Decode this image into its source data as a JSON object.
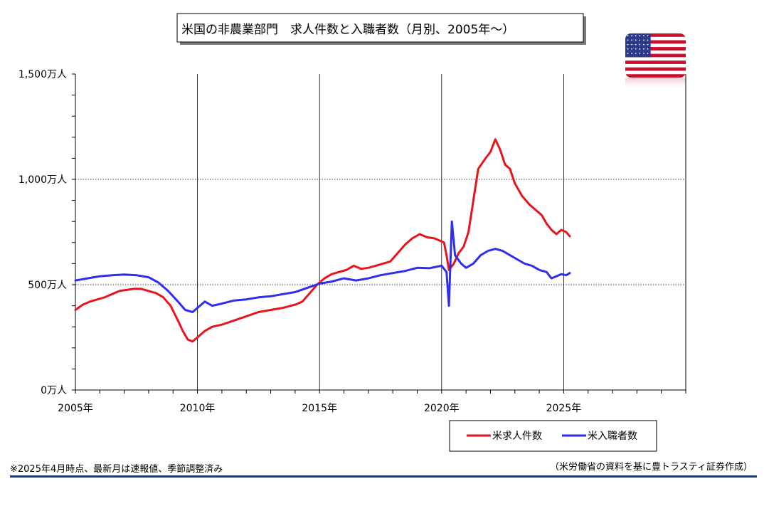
{
  "colors": {
    "hires": "#e8141c",
    "openings": "#2e2ef0",
    "grid": "#000000",
    "footer_rule": "#1f3a6e",
    "flag_red": "#c8102e",
    "flag_blue": "#2b3a8c"
  },
  "flag_icon": "us-flag-icon",
  "footnote_left": "※2025年4月時点、最新月は速報値、季節調整済み",
  "footnote_right": "（米労働省の資料を基に豊トラスティ証券作成）",
  "chart_data": {
    "type": "line",
    "title": "米国の非農業部門　求人件数と入職者数（月別、2005年～）",
    "xlabel": "",
    "ylabel": "",
    "x_unit": "year",
    "xlim": [
      2005,
      2030
    ],
    "ylim": [
      0,
      1500
    ],
    "y_ticks": [
      0,
      500,
      1000,
      1500
    ],
    "y_tick_labels": [
      "0万人",
      "500万人",
      "1,000万人",
      "1,500万人"
    ],
    "x_ticks": [
      2005,
      2010,
      2015,
      2020,
      2025
    ],
    "x_tick_labels": [
      "2005年",
      "2010年",
      "2015年",
      "2020年",
      "2025年"
    ],
    "grid": {
      "x": true,
      "y": true
    },
    "legend_position": "bottom-right",
    "series": [
      {
        "name": "米求人件数",
        "color_key": "hires",
        "points": [
          [
            2005.0,
            380
          ],
          [
            2005.3,
            405
          ],
          [
            2005.6,
            420
          ],
          [
            2005.9,
            430
          ],
          [
            2006.2,
            440
          ],
          [
            2006.5,
            455
          ],
          [
            2006.8,
            470
          ],
          [
            2007.1,
            475
          ],
          [
            2007.4,
            480
          ],
          [
            2007.7,
            480
          ],
          [
            2008.0,
            470
          ],
          [
            2008.3,
            460
          ],
          [
            2008.6,
            440
          ],
          [
            2008.9,
            400
          ],
          [
            2009.2,
            330
          ],
          [
            2009.4,
            280
          ],
          [
            2009.6,
            240
          ],
          [
            2009.8,
            230
          ],
          [
            2010.0,
            250
          ],
          [
            2010.3,
            280
          ],
          [
            2010.6,
            300
          ],
          [
            2011.0,
            310
          ],
          [
            2011.5,
            330
          ],
          [
            2012.0,
            350
          ],
          [
            2012.5,
            370
          ],
          [
            2013.0,
            380
          ],
          [
            2013.5,
            390
          ],
          [
            2014.0,
            405
          ],
          [
            2014.3,
            420
          ],
          [
            2014.6,
            460
          ],
          [
            2014.9,
            500
          ],
          [
            2015.2,
            530
          ],
          [
            2015.5,
            550
          ],
          [
            2015.8,
            560
          ],
          [
            2016.1,
            570
          ],
          [
            2016.4,
            590
          ],
          [
            2016.7,
            575
          ],
          [
            2017.0,
            580
          ],
          [
            2017.3,
            590
          ],
          [
            2017.6,
            600
          ],
          [
            2017.9,
            610
          ],
          [
            2018.2,
            650
          ],
          [
            2018.5,
            690
          ],
          [
            2018.8,
            720
          ],
          [
            2019.1,
            740
          ],
          [
            2019.4,
            725
          ],
          [
            2019.7,
            720
          ],
          [
            2019.9,
            710
          ],
          [
            2020.1,
            700
          ],
          [
            2020.2,
            640
          ],
          [
            2020.3,
            570
          ],
          [
            2020.5,
            600
          ],
          [
            2020.7,
            650
          ],
          [
            2020.9,
            680
          ],
          [
            2021.1,
            750
          ],
          [
            2021.3,
            900
          ],
          [
            2021.5,
            1050
          ],
          [
            2021.8,
            1100
          ],
          [
            2022.0,
            1130
          ],
          [
            2022.2,
            1190
          ],
          [
            2022.4,
            1140
          ],
          [
            2022.6,
            1070
          ],
          [
            2022.8,
            1050
          ],
          [
            2023.0,
            980
          ],
          [
            2023.3,
            920
          ],
          [
            2023.6,
            880
          ],
          [
            2023.9,
            850
          ],
          [
            2024.1,
            830
          ],
          [
            2024.3,
            790
          ],
          [
            2024.5,
            760
          ],
          [
            2024.7,
            740
          ],
          [
            2024.9,
            760
          ],
          [
            2025.1,
            750
          ],
          [
            2025.25,
            730
          ]
        ]
      },
      {
        "name": "米入職者数",
        "color_key": "openings",
        "points": [
          [
            2005.0,
            520
          ],
          [
            2005.5,
            530
          ],
          [
            2006.0,
            540
          ],
          [
            2006.5,
            545
          ],
          [
            2007.0,
            548
          ],
          [
            2007.5,
            545
          ],
          [
            2008.0,
            535
          ],
          [
            2008.4,
            510
          ],
          [
            2008.8,
            470
          ],
          [
            2009.2,
            420
          ],
          [
            2009.5,
            380
          ],
          [
            2009.8,
            370
          ],
          [
            2010.0,
            390
          ],
          [
            2010.3,
            420
          ],
          [
            2010.6,
            400
          ],
          [
            2011.0,
            410
          ],
          [
            2011.5,
            425
          ],
          [
            2012.0,
            430
          ],
          [
            2012.5,
            440
          ],
          [
            2013.0,
            445
          ],
          [
            2013.5,
            455
          ],
          [
            2014.0,
            465
          ],
          [
            2014.5,
            485
          ],
          [
            2015.0,
            505
          ],
          [
            2015.5,
            515
          ],
          [
            2016.0,
            530
          ],
          [
            2016.5,
            520
          ],
          [
            2017.0,
            530
          ],
          [
            2017.5,
            545
          ],
          [
            2018.0,
            555
          ],
          [
            2018.5,
            565
          ],
          [
            2019.0,
            580
          ],
          [
            2019.5,
            578
          ],
          [
            2020.0,
            590
          ],
          [
            2020.2,
            560
          ],
          [
            2020.3,
            400
          ],
          [
            2020.42,
            800
          ],
          [
            2020.55,
            640
          ],
          [
            2020.8,
            600
          ],
          [
            2021.0,
            580
          ],
          [
            2021.3,
            600
          ],
          [
            2021.6,
            640
          ],
          [
            2021.9,
            660
          ],
          [
            2022.2,
            670
          ],
          [
            2022.5,
            660
          ],
          [
            2022.8,
            640
          ],
          [
            2023.1,
            620
          ],
          [
            2023.4,
            600
          ],
          [
            2023.7,
            590
          ],
          [
            2024.0,
            570
          ],
          [
            2024.3,
            560
          ],
          [
            2024.5,
            530
          ],
          [
            2024.7,
            540
          ],
          [
            2024.9,
            550
          ],
          [
            2025.1,
            545
          ],
          [
            2025.25,
            555
          ]
        ]
      }
    ]
  }
}
